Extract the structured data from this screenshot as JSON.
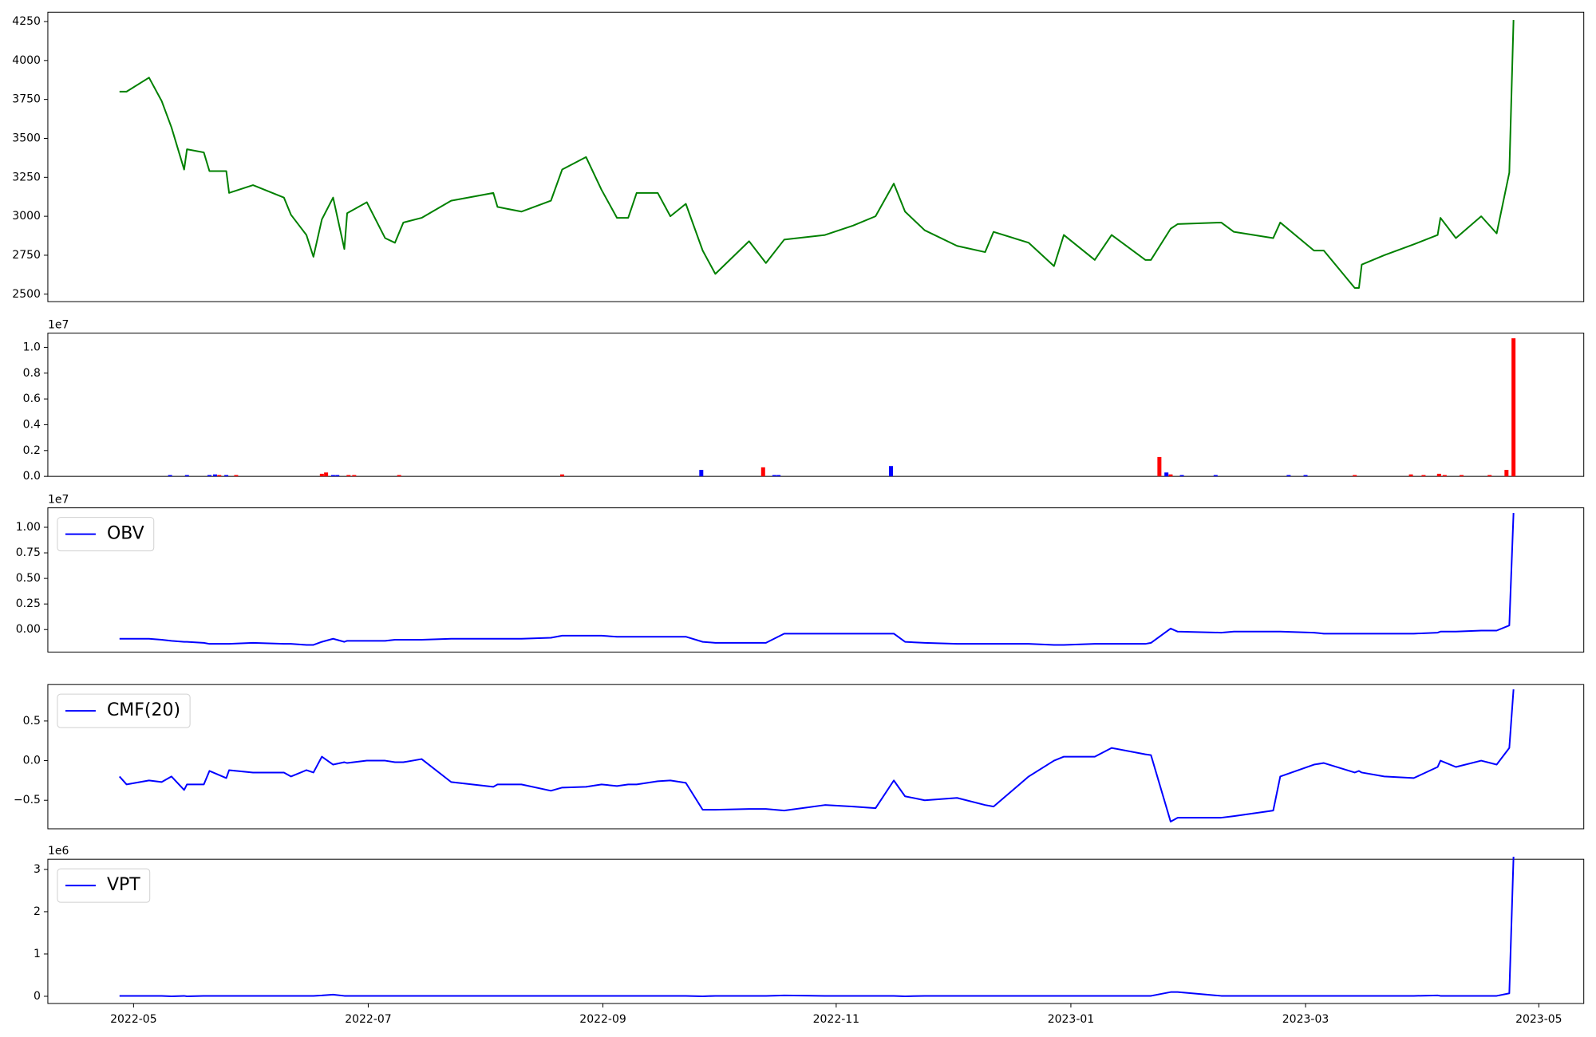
{
  "chart_data": [
    {
      "type": "line",
      "x": [
        2022.323,
        2022.328,
        2022.344,
        2022.353,
        2022.36,
        2022.369,
        2022.371,
        2022.383,
        2022.387,
        2022.399,
        2022.401,
        2022.418,
        2022.44,
        2022.445,
        2022.456,
        2022.461,
        2022.467,
        2022.475,
        2022.483,
        2022.485,
        2022.499,
        2022.512,
        2022.519,
        2022.525,
        2022.538,
        2022.559,
        2022.589,
        2022.592,
        2022.609,
        2022.63,
        2022.638,
        2022.655,
        2022.666,
        2022.677,
        2022.685,
        2022.691,
        2022.706,
        2022.715,
        2022.726,
        2022.738,
        2022.747,
        2022.771,
        2022.783,
        2022.796,
        2022.825,
        2022.845,
        2022.861,
        2022.874,
        2022.882,
        2022.896,
        2022.919,
        2022.939,
        2022.945,
        2022.97,
        2022.988,
        2022.995,
        2023.017,
        2023.029,
        2023.053,
        2023.057,
        2023.071,
        2023.076,
        2023.107,
        2023.116,
        2023.144,
        2023.149,
        2023.173,
        2023.18,
        2023.202,
        2023.205,
        2023.207,
        2023.223,
        2023.244,
        2023.261,
        2023.263,
        2023.274,
        2023.292,
        2023.303,
        2023.312,
        2023.315
      ],
      "series": [
        {
          "color": "#008000",
          "values": [
            3800,
            3800,
            3890,
            3740,
            3570,
            3300,
            3430,
            3410,
            3290,
            3290,
            3150,
            3200,
            3120,
            3010,
            2880,
            2740,
            2980,
            3120,
            2790,
            3020,
            3090,
            2860,
            2830,
            2960,
            2990,
            3100,
            3150,
            3060,
            3030,
            3100,
            3300,
            3380,
            3170,
            2990,
            2990,
            3150,
            3150,
            3000,
            3080,
            2780,
            2630,
            2840,
            2700,
            2850,
            2880,
            2940,
            3000,
            3210,
            3030,
            2910,
            2810,
            2770,
            2900,
            2830,
            2680,
            2880,
            2720,
            2880,
            2720,
            2720,
            2920,
            2950,
            2960,
            2900,
            2860,
            2960,
            2780,
            2780,
            2540,
            2540,
            2690,
            2750,
            2820,
            2880,
            2990,
            2860,
            3000,
            2890,
            3280,
            4260
          ]
        }
      ],
      "xlim": [
        2022.272,
        2023.365
      ],
      "ylim": [
        2452,
        4310
      ],
      "yticks": [
        2500,
        2750,
        3000,
        3250,
        3500,
        3750,
        4000,
        4250
      ]
    },
    {
      "type": "bar",
      "offset_label": "1e7",
      "x": [
        2022.359,
        2022.371,
        2022.387,
        2022.391,
        2022.394,
        2022.399,
        2022.406,
        2022.467,
        2022.47,
        2022.475,
        2022.478,
        2022.486,
        2022.49,
        2022.522,
        2022.638,
        2022.737,
        2022.781,
        2022.789,
        2022.792,
        2022.872,
        2023.063,
        2023.068,
        2023.071,
        2023.079,
        2023.103,
        2023.155,
        2023.167,
        2023.202,
        2023.242,
        2023.251,
        2023.262,
        2023.266,
        2023.278,
        2023.298,
        2023.31,
        2023.315
      ],
      "values": [
        0.01,
        0.01,
        0.01,
        0.015,
        0.01,
        0.01,
        0.01,
        0.02,
        0.03,
        0.01,
        0.01,
        0.01,
        0.01,
        0.01,
        0.015,
        0.05,
        0.07,
        0.01,
        0.01,
        0.08,
        0.15,
        0.03,
        0.015,
        0.01,
        0.01,
        0.01,
        0.01,
        0.01,
        0.015,
        0.01,
        0.02,
        0.01,
        0.01,
        0.01,
        0.05,
        1.07
      ],
      "colors": [
        "#0000ff",
        "#0000ff",
        "#0000ff",
        "#0000ff",
        "#ff0000",
        "#0000ff",
        "#ff0000",
        "#ff0000",
        "#ff0000",
        "#0000ff",
        "#0000ff",
        "#ff0000",
        "#ff0000",
        "#ff0000",
        "#ff0000",
        "#0000ff",
        "#ff0000",
        "#0000ff",
        "#0000ff",
        "#0000ff",
        "#ff0000",
        "#0000ff",
        "#ff0000",
        "#0000ff",
        "#0000ff",
        "#0000ff",
        "#0000ff",
        "#ff0000",
        "#ff0000",
        "#ff0000",
        "#ff0000",
        "#ff0000",
        "#ff0000",
        "#ff0000",
        "#ff0000",
        "#ff0000"
      ],
      "xlim": [
        2022.272,
        2023.365
      ],
      "ylim": [
        0,
        1.11
      ],
      "yticks": [
        {
          "value": 0,
          "label": "0.0"
        },
        0.2,
        0.4,
        0.6,
        0.8,
        {
          "value": 1,
          "label": "1.0"
        }
      ]
    },
    {
      "type": "line",
      "offset_label": "1e7",
      "legend": "upper left",
      "x": [
        2022.323,
        2022.328,
        2022.344,
        2022.353,
        2022.36,
        2022.369,
        2022.371,
        2022.383,
        2022.387,
        2022.399,
        2022.401,
        2022.418,
        2022.44,
        2022.445,
        2022.456,
        2022.461,
        2022.467,
        2022.475,
        2022.483,
        2022.485,
        2022.499,
        2022.512,
        2022.519,
        2022.525,
        2022.538,
        2022.559,
        2022.589,
        2022.592,
        2022.609,
        2022.63,
        2022.638,
        2022.655,
        2022.666,
        2022.677,
        2022.685,
        2022.691,
        2022.706,
        2022.715,
        2022.726,
        2022.738,
        2022.747,
        2022.771,
        2022.783,
        2022.796,
        2022.825,
        2022.845,
        2022.861,
        2022.874,
        2022.882,
        2022.896,
        2022.919,
        2022.939,
        2022.945,
        2022.97,
        2022.988,
        2022.995,
        2023.017,
        2023.029,
        2023.053,
        2023.057,
        2023.071,
        2023.076,
        2023.107,
        2023.116,
        2023.144,
        2023.149,
        2023.173,
        2023.18,
        2023.202,
        2023.205,
        2023.207,
        2023.223,
        2023.244,
        2023.261,
        2023.263,
        2023.274,
        2023.292,
        2023.303,
        2023.312,
        2023.315
      ],
      "series": [
        {
          "name": "OBV",
          "color": "#0000ff",
          "values": [
            -0.09,
            -0.09,
            -0.09,
            -0.1,
            -0.11,
            -0.12,
            -0.12,
            -0.13,
            -0.14,
            -0.14,
            -0.14,
            -0.13,
            -0.14,
            -0.14,
            -0.15,
            -0.15,
            -0.12,
            -0.09,
            -0.12,
            -0.11,
            -0.11,
            -0.11,
            -0.1,
            -0.1,
            -0.1,
            -0.09,
            -0.09,
            -0.09,
            -0.09,
            -0.08,
            -0.06,
            -0.06,
            -0.06,
            -0.07,
            -0.07,
            -0.07,
            -0.07,
            -0.07,
            -0.07,
            -0.12,
            -0.13,
            -0.13,
            -0.13,
            -0.04,
            -0.04,
            -0.04,
            -0.04,
            -0.04,
            -0.12,
            -0.13,
            -0.14,
            -0.14,
            -0.14,
            -0.14,
            -0.15,
            -0.15,
            -0.14,
            -0.14,
            -0.14,
            -0.13,
            0.01,
            -0.02,
            -0.03,
            -0.02,
            -0.02,
            -0.02,
            -0.03,
            -0.04,
            -0.04,
            -0.04,
            -0.04,
            -0.04,
            -0.04,
            -0.03,
            -0.02,
            -0.02,
            -0.01,
            -0.01,
            0.04,
            1.14
          ]
        }
      ],
      "xlim": [
        2022.272,
        2023.365
      ],
      "ylim": [
        -0.22,
        1.19
      ],
      "yticks": [
        {
          "value": 0,
          "label": "0.00"
        },
        0.25,
        {
          "value": 0.5,
          "label": "0.50"
        },
        0.75,
        {
          "value": 1,
          "label": "1.00"
        }
      ]
    },
    {
      "type": "line",
      "legend": "upper left",
      "x": [
        2022.323,
        2022.328,
        2022.344,
        2022.353,
        2022.36,
        2022.369,
        2022.371,
        2022.383,
        2022.387,
        2022.399,
        2022.401,
        2022.418,
        2022.44,
        2022.445,
        2022.456,
        2022.461,
        2022.467,
        2022.475,
        2022.483,
        2022.485,
        2022.499,
        2022.512,
        2022.519,
        2022.525,
        2022.538,
        2022.559,
        2022.589,
        2022.592,
        2022.609,
        2022.63,
        2022.638,
        2022.655,
        2022.666,
        2022.677,
        2022.685,
        2022.691,
        2022.706,
        2022.715,
        2022.726,
        2022.738,
        2022.747,
        2022.771,
        2022.783,
        2022.796,
        2022.825,
        2022.845,
        2022.861,
        2022.874,
        2022.882,
        2022.896,
        2022.919,
        2022.939,
        2022.945,
        2022.97,
        2022.988,
        2022.995,
        2023.017,
        2023.029,
        2023.053,
        2023.057,
        2023.071,
        2023.076,
        2023.107,
        2023.116,
        2023.144,
        2023.149,
        2023.173,
        2023.18,
        2023.202,
        2023.205,
        2023.207,
        2023.223,
        2023.244,
        2023.261,
        2023.263,
        2023.274,
        2023.292,
        2023.303,
        2023.312,
        2023.315
      ],
      "series": [
        {
          "name": "CMF(20)",
          "color": "#0000ff",
          "values": [
            -0.2,
            -0.3,
            -0.25,
            -0.27,
            -0.2,
            -0.37,
            -0.3,
            -0.3,
            -0.13,
            -0.22,
            -0.12,
            -0.15,
            -0.15,
            -0.2,
            -0.12,
            -0.15,
            0.05,
            -0.05,
            -0.02,
            -0.03,
            0.0,
            0.0,
            -0.02,
            -0.02,
            0.02,
            -0.27,
            -0.33,
            -0.3,
            -0.3,
            -0.38,
            -0.34,
            -0.33,
            -0.3,
            -0.32,
            -0.3,
            -0.3,
            -0.26,
            -0.25,
            -0.28,
            -0.62,
            -0.62,
            -0.61,
            -0.61,
            -0.63,
            -0.56,
            -0.58,
            -0.6,
            -0.25,
            -0.45,
            -0.5,
            -0.47,
            -0.56,
            -0.58,
            -0.2,
            0.0,
            0.05,
            0.05,
            0.16,
            0.08,
            0.07,
            -0.77,
            -0.72,
            -0.72,
            -0.7,
            -0.63,
            -0.2,
            -0.05,
            -0.03,
            -0.15,
            -0.13,
            -0.15,
            -0.2,
            -0.22,
            -0.08,
            0.0,
            -0.08,
            0.0,
            -0.05,
            0.16,
            0.9
          ]
        }
      ],
      "xlim": [
        2022.272,
        2023.365
      ],
      "ylim": [
        -0.86,
        0.96
      ],
      "yticks": [
        {
          "value": -0.5,
          "label": "−0.5"
        },
        {
          "value": 0,
          "label": "0.0"
        },
        0.5
      ]
    },
    {
      "type": "line",
      "offset_label": "1e6",
      "legend": "upper left",
      "x": [
        2022.323,
        2022.328,
        2022.344,
        2022.353,
        2022.36,
        2022.369,
        2022.371,
        2022.383,
        2022.387,
        2022.399,
        2022.401,
        2022.418,
        2022.44,
        2022.445,
        2022.456,
        2022.461,
        2022.467,
        2022.475,
        2022.483,
        2022.485,
        2022.499,
        2022.512,
        2022.519,
        2022.525,
        2022.538,
        2022.559,
        2022.589,
        2022.592,
        2022.609,
        2022.63,
        2022.638,
        2022.655,
        2022.666,
        2022.677,
        2022.685,
        2022.691,
        2022.706,
        2022.715,
        2022.726,
        2022.738,
        2022.747,
        2022.771,
        2022.783,
        2022.796,
        2022.825,
        2022.845,
        2022.861,
        2022.874,
        2022.882,
        2022.896,
        2022.919,
        2022.939,
        2022.945,
        2022.97,
        2022.988,
        2022.995,
        2023.017,
        2023.029,
        2023.053,
        2023.057,
        2023.071,
        2023.076,
        2023.107,
        2023.116,
        2023.144,
        2023.149,
        2023.173,
        2023.18,
        2023.202,
        2023.205,
        2023.207,
        2023.223,
        2023.244,
        2023.261,
        2023.263,
        2023.274,
        2023.292,
        2023.303,
        2023.312,
        2023.315
      ],
      "series": [
        {
          "name": "VPT",
          "color": "#0000ff",
          "values": [
            0.01,
            0.01,
            0.01,
            0.01,
            0.0,
            0.01,
            0.0,
            0.01,
            0.01,
            0.01,
            0.01,
            0.01,
            0.01,
            0.01,
            0.01,
            0.01,
            0.02,
            0.04,
            0.01,
            0.01,
            0.01,
            0.01,
            0.01,
            0.01,
            0.01,
            0.01,
            0.01,
            0.01,
            0.01,
            0.01,
            0.01,
            0.01,
            0.01,
            0.01,
            0.01,
            0.01,
            0.01,
            0.01,
            0.01,
            0.0,
            0.01,
            0.01,
            0.01,
            0.02,
            0.01,
            0.01,
            0.01,
            0.01,
            0.0,
            0.01,
            0.01,
            0.01,
            0.01,
            0.01,
            0.01,
            0.01,
            0.01,
            0.01,
            0.01,
            0.01,
            0.1,
            0.1,
            0.01,
            0.01,
            0.01,
            0.01,
            0.01,
            0.01,
            0.01,
            0.01,
            0.01,
            0.01,
            0.01,
            0.02,
            0.01,
            0.01,
            0.01,
            0.01,
            0.07,
            3.3
          ]
        }
      ],
      "xlim": [
        2022.272,
        2023.365
      ],
      "ylim": [
        -0.17,
        3.24
      ],
      "yticks": [
        0,
        1,
        2,
        3
      ],
      "xticks": [
        {
          "value": 2022.333,
          "label": "2022-05"
        },
        {
          "value": 2022.5,
          "label": "2022-07"
        },
        {
          "value": 2022.667,
          "label": "2022-09"
        },
        {
          "value": 2022.833,
          "label": "2022-11"
        },
        {
          "value": 2023.0,
          "label": "2023-01"
        },
        {
          "value": 2023.167,
          "label": "2023-03"
        },
        {
          "value": 2023.333,
          "label": "2023-05"
        }
      ]
    }
  ]
}
